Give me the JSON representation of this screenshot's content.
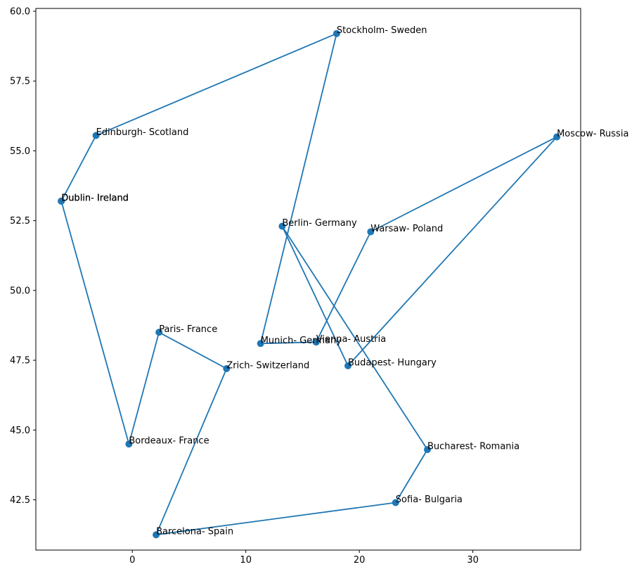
{
  "chart_data": {
    "type": "line",
    "title": "",
    "xlabel": "",
    "ylabel": "",
    "xlim": [
      -8.5,
      39.5
    ],
    "ylim": [
      40.7,
      60.1
    ],
    "xticks": [
      0,
      10,
      20,
      30
    ],
    "yticks": [
      42.5,
      45.0,
      47.5,
      50.0,
      52.5,
      55.0,
      57.5,
      60.0
    ],
    "grid": false,
    "series_color": "#1f77b4",
    "route": [
      {
        "label": "Dublin- Ireland",
        "x": -6.26,
        "y": 53.2
      },
      {
        "label": "Dublin- Ireland",
        "x": -6.26,
        "y": 53.2
      },
      {
        "label": "Edinburgh- Scotland",
        "x": -3.2,
        "y": 55.55
      },
      {
        "label": "Stockholm- Sweden",
        "x": 18.0,
        "y": 59.2
      },
      {
        "label": "Munich- Germany",
        "x": 11.3,
        "y": 48.1
      },
      {
        "label": "Vienna- Austria",
        "x": 16.2,
        "y": 48.15
      },
      {
        "label": "Warsaw- Poland",
        "x": 21.0,
        "y": 52.1
      },
      {
        "label": "Moscow- Russia",
        "x": 37.4,
        "y": 55.5
      },
      {
        "label": "Budapest- Hungary",
        "x": 19.0,
        "y": 47.3
      },
      {
        "label": "Berlin- Germany",
        "x": 13.2,
        "y": 52.3
      },
      {
        "label": "Bucharest- Romania",
        "x": 26.0,
        "y": 44.3
      },
      {
        "label": "Sofia- Bulgaria",
        "x": 23.2,
        "y": 42.4
      },
      {
        "label": "Barcelona- Spain",
        "x": 2.1,
        "y": 41.25
      },
      {
        "label": "Zrich- Switzerland",
        "x": 8.3,
        "y": 47.2
      },
      {
        "label": "Paris- France",
        "x": 2.35,
        "y": 48.5
      },
      {
        "label": "Bordeaux- France",
        "x": -0.3,
        "y": 44.5
      },
      {
        "label": "Dublin- Ireland",
        "x": -6.26,
        "y": 53.2
      }
    ]
  }
}
